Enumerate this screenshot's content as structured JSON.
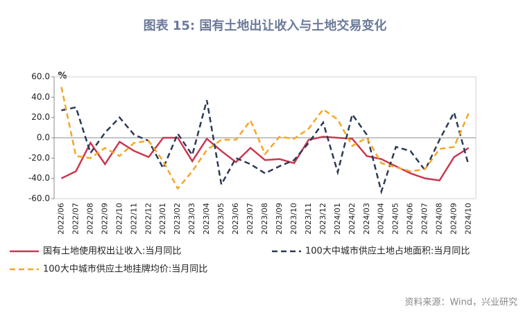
{
  "chart_data": {
    "type": "line",
    "title": "图表 15: 国有土地出让收入与土地交易变化",
    "unit": "%",
    "source": "资料来源：Wind，兴业研究",
    "categories": [
      "2022/06",
      "2022/07",
      "2022/08",
      "2022/09",
      "2022/10",
      "2022/11",
      "2022/12",
      "2023/01",
      "2023/02",
      "2023/03",
      "2023/04",
      "2023/05",
      "2023/06",
      "2023/07",
      "2023/08",
      "2023/09",
      "2023/10",
      "2023/11",
      "2023/12",
      "2024/01",
      "2024/02",
      "2024/03",
      "2024/04",
      "2024/05",
      "2024/06",
      "2024/07",
      "2024/08",
      "2024/09",
      "2024/10"
    ],
    "series": [
      {
        "name": "国有土地使用权出让收入:当月同比",
        "color": "#c8374f",
        "line_style": "solid",
        "values": [
          -40,
          -33,
          -5,
          -26,
          -4,
          -13,
          -19,
          0,
          0,
          -23,
          -1,
          -13,
          -24,
          -10,
          -22,
          -21,
          -25,
          -2,
          1,
          0,
          -1,
          -18,
          -21,
          -28,
          -35,
          -40,
          -42,
          -19,
          -10
        ]
      },
      {
        "name": "100大中城市供应土地占地面积:当月同比",
        "color": "#2b3a55",
        "line_style": "dashed",
        "values": [
          27,
          30,
          -15,
          5,
          20,
          3,
          -3,
          -30,
          4,
          -17,
          37,
          -46,
          -20,
          -26,
          -35,
          -28,
          -22,
          -5,
          15,
          -34,
          23,
          3,
          -53,
          -9,
          -13,
          -32,
          -2,
          25,
          -27
        ]
      },
      {
        "name": "100大中城市供应土地挂牌均价:当月同比",
        "color": "#f5a623",
        "line_style": "dashed",
        "values": [
          50,
          -18,
          -20,
          -10,
          -18,
          -5,
          -3,
          -23,
          -50,
          -33,
          -12,
          -2,
          -2,
          17,
          -16,
          1,
          -1,
          9,
          28,
          18,
          -8,
          0,
          -25,
          -29,
          -33,
          -31,
          -11,
          -9,
          24
        ]
      }
    ],
    "ylim": [
      -60,
      60
    ],
    "yticks": [
      {
        "value": 60,
        "label": "60.0"
      },
      {
        "value": 40,
        "label": "40.0"
      },
      {
        "value": 20,
        "label": "20.0"
      },
      {
        "value": 0,
        "label": "0.0"
      },
      {
        "value": -20,
        "label": "-20.0"
      },
      {
        "value": -40,
        "label": "-40.0"
      },
      {
        "value": -60,
        "label": "-60.0"
      }
    ],
    "grid": false
  }
}
